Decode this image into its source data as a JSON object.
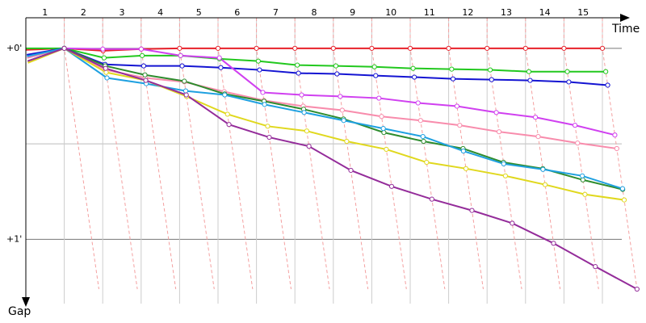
{
  "chart_data": {
    "type": "line",
    "x_label": "Time",
    "y_label": "Gap",
    "x": [
      0,
      1,
      2,
      3,
      4,
      5,
      6,
      7,
      8,
      9,
      10,
      11,
      12,
      13,
      14,
      15
    ],
    "xlim": [
      0,
      15
    ],
    "xticks": [
      {
        "value": 0.5,
        "label": "1"
      },
      {
        "value": 1.5,
        "label": "2"
      },
      {
        "value": 2.5,
        "label": "3"
      },
      {
        "value": 3.5,
        "label": "4"
      },
      {
        "value": 4.5,
        "label": "5"
      },
      {
        "value": 5.5,
        "label": "6"
      },
      {
        "value": 6.5,
        "label": "7"
      },
      {
        "value": 7.5,
        "label": "8"
      },
      {
        "value": 8.5,
        "label": "9"
      },
      {
        "value": 9.5,
        "label": "10"
      },
      {
        "value": 10.5,
        "label": "11"
      },
      {
        "value": 11.5,
        "label": "12"
      },
      {
        "value": 12.5,
        "label": "13"
      },
      {
        "value": 13.5,
        "label": "14"
      },
      {
        "value": 14.5,
        "label": "15"
      }
    ],
    "ylim": [
      -0.16,
      1.32
    ],
    "yticks": [
      {
        "value": 0,
        "label": "+0'"
      },
      {
        "value": 1,
        "label": "+1'"
      }
    ],
    "minor_grid": [
      0.5
    ],
    "series": [
      {
        "color": "#e8202a",
        "values": [
          0.008,
          0,
          0.013,
          0.004,
          0,
          0,
          0,
          0,
          0,
          0,
          0,
          0,
          0,
          0,
          0,
          0
        ]
      },
      {
        "color": "#22c81e",
        "values": [
          0,
          0,
          0.05,
          0.038,
          0.038,
          0.055,
          0.067,
          0.088,
          0.092,
          0.097,
          0.105,
          0.109,
          0.113,
          0.122,
          0.122,
          0.122
        ]
      },
      {
        "color": "#1414d2",
        "values": [
          0.034,
          0,
          0.084,
          0.092,
          0.092,
          0.101,
          0.113,
          0.13,
          0.134,
          0.143,
          0.151,
          0.16,
          0.164,
          0.168,
          0.176,
          0.193
        ]
      },
      {
        "color": "#d040f0",
        "values": [
          0.05,
          0,
          0.004,
          0.004,
          0.038,
          0.05,
          0.231,
          0.244,
          0.252,
          0.261,
          0.286,
          0.303,
          0.336,
          0.361,
          0.403,
          0.454
        ]
      },
      {
        "color": "#f88cac",
        "values": [
          0.05,
          0,
          0.113,
          0.155,
          0.176,
          0.227,
          0.273,
          0.303,
          0.324,
          0.357,
          0.378,
          0.403,
          0.437,
          0.462,
          0.496,
          0.525
        ]
      },
      {
        "color": "#2e8c2e",
        "values": [
          0.067,
          0,
          0.092,
          0.139,
          0.172,
          0.239,
          0.277,
          0.319,
          0.37,
          0.441,
          0.487,
          0.525,
          0.597,
          0.63,
          0.689,
          0.739
        ]
      },
      {
        "color": "#1ea0e0",
        "values": [
          0.042,
          0,
          0.155,
          0.185,
          0.223,
          0.244,
          0.294,
          0.336,
          0.378,
          0.42,
          0.462,
          0.538,
          0.605,
          0.634,
          0.668,
          0.735
        ]
      },
      {
        "color": "#e0d81e",
        "values": [
          0.076,
          0,
          0.126,
          0.168,
          0.252,
          0.345,
          0.408,
          0.433,
          0.487,
          0.529,
          0.597,
          0.63,
          0.668,
          0.714,
          0.765,
          0.794
        ]
      },
      {
        "color": "#942c9a",
        "values": [
          0.067,
          0,
          0.105,
          0.168,
          0.244,
          0.399,
          0.466,
          0.513,
          0.639,
          0.723,
          0.79,
          0.849,
          0.916,
          1.021,
          1.143,
          1.261
        ]
      }
    ]
  }
}
